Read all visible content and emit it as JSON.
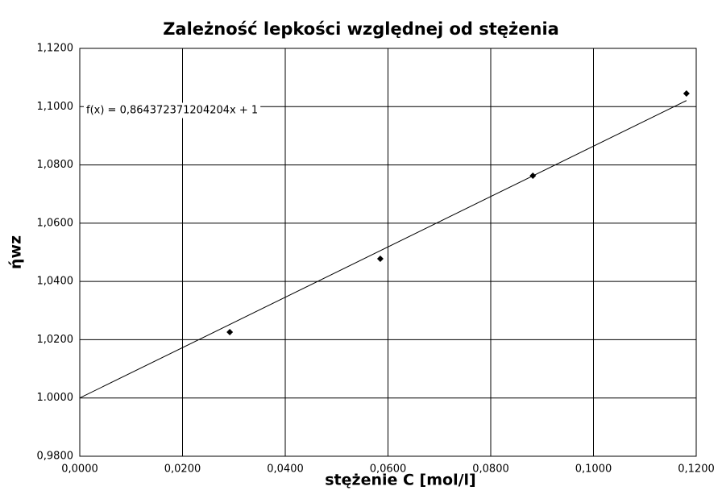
{
  "chart_data": {
    "type": "scatter",
    "title": "Zależność lepkości względnej od stężenia",
    "x_label": "stężenie C [mol/l]",
    "y_label": "ήwz",
    "x": [
      0.0292,
      0.0585,
      0.0882,
      0.1181
    ],
    "values": [
      1.0226,
      1.0478,
      1.0763,
      1.1045
    ],
    "color": "#000000",
    "xlim": [
      0,
      0.12
    ],
    "ylim": [
      0.98,
      1.12
    ],
    "xticks": [
      {
        "value": 0,
        "label": "0,0000"
      },
      {
        "value": 0.02,
        "label": "0,0200"
      },
      {
        "value": 0.04,
        "label": "0,0400"
      },
      {
        "value": 0.06,
        "label": "0,0600"
      },
      {
        "value": 0.08,
        "label": "0,0800"
      },
      {
        "value": 0.1,
        "label": "0,1000"
      },
      {
        "value": 0.12,
        "label": "0,1200"
      }
    ],
    "yticks": [
      {
        "value": 0.98,
        "label": "0,9800"
      },
      {
        "value": 1,
        "label": "1.0000"
      },
      {
        "value": 1.02,
        "label": "1,0200"
      },
      {
        "value": 1.04,
        "label": "1,0400"
      },
      {
        "value": 1.06,
        "label": "1,0600"
      },
      {
        "value": 1.08,
        "label": "1,0800"
      },
      {
        "value": 1.1,
        "label": "1,1000"
      },
      {
        "value": 1.12,
        "label": "1,1200"
      }
    ],
    "grid": true,
    "trendline": {
      "label": "f(x) = 0,864372371204204x + 1",
      "slope": 0.864372371204204,
      "intercept": 1
    }
  }
}
